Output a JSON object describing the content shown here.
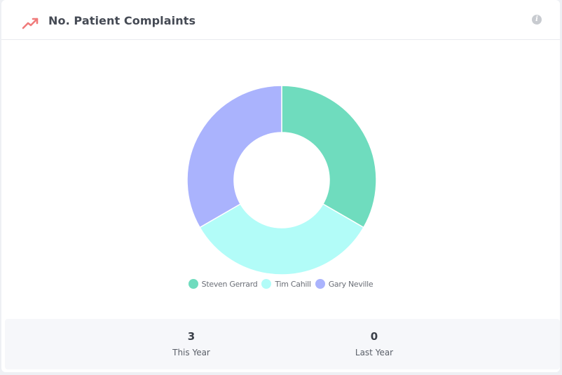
{
  "header": {
    "title": "No. Patient Complaints",
    "trend_icon": "trending-up-icon",
    "info_icon": "info-icon",
    "info_glyph": "i",
    "accent_color": "#f07b7b"
  },
  "chart_data": {
    "type": "pie",
    "donut": true,
    "labels": [
      "Steven Gerrard",
      "Tim Cahill",
      "Gary Neville"
    ],
    "values": [
      1,
      1,
      1
    ],
    "colors": [
      "#6fdcbe",
      "#b2fcf8",
      "#aab3fd"
    ],
    "legend_position": "bottom"
  },
  "stats": [
    {
      "value": "3",
      "label": "This Year"
    },
    {
      "value": "0",
      "label": "Last Year"
    }
  ]
}
